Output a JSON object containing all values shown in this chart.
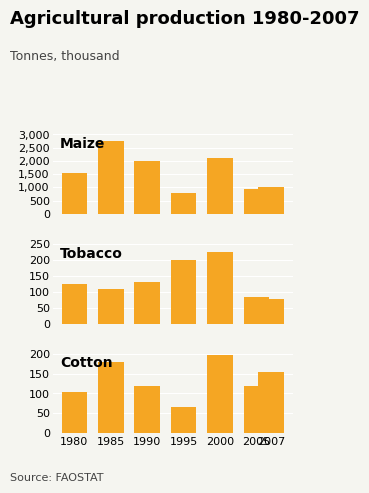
{
  "title": "Agricultural production 1980-2007",
  "subtitle": "Tonnes, thousand",
  "source": "Source: FAOSTAT",
  "years": [
    1980,
    1985,
    1990,
    1995,
    2000,
    2005,
    2007
  ],
  "maize": {
    "label": "Maize",
    "values": [
      1550,
      2750,
      2000,
      800,
      2100,
      950,
      1000
    ],
    "ylim": [
      0,
      3000
    ],
    "yticks": [
      0,
      500,
      1000,
      1500,
      2000,
      2500,
      3000
    ]
  },
  "tobacco": {
    "label": "Tobacco",
    "values": [
      125,
      108,
      130,
      200,
      225,
      85,
      78
    ],
    "ylim": [
      0,
      250
    ],
    "yticks": [
      0,
      50,
      100,
      150,
      200,
      250
    ]
  },
  "cotton": {
    "label": "Cotton",
    "values": [
      103,
      178,
      118,
      65,
      198,
      120,
      155
    ],
    "ylim": [
      0,
      200
    ],
    "yticks": [
      0,
      50,
      100,
      150,
      200
    ]
  },
  "bar_color": "#F5A623",
  "background_color": "#F5F5F0",
  "bar_width": 3.5,
  "title_fontsize": 13,
  "subtitle_fontsize": 9,
  "label_fontsize": 10,
  "tick_fontsize": 8,
  "source_fontsize": 8
}
